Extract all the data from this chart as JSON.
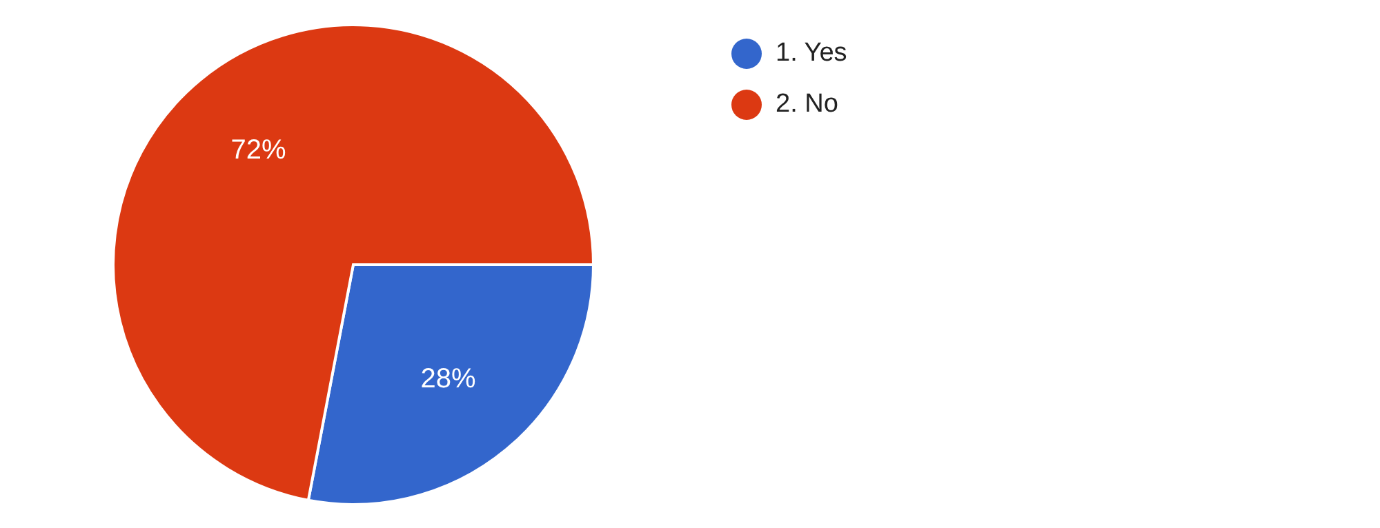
{
  "chart_data": {
    "type": "pie",
    "categories": [
      "1. Yes",
      "2. No"
    ],
    "values": [
      28,
      72
    ],
    "colors": [
      "#3366cc",
      "#dc3912"
    ],
    "value_labels": [
      "28%",
      "72%"
    ],
    "legend": "top right"
  }
}
